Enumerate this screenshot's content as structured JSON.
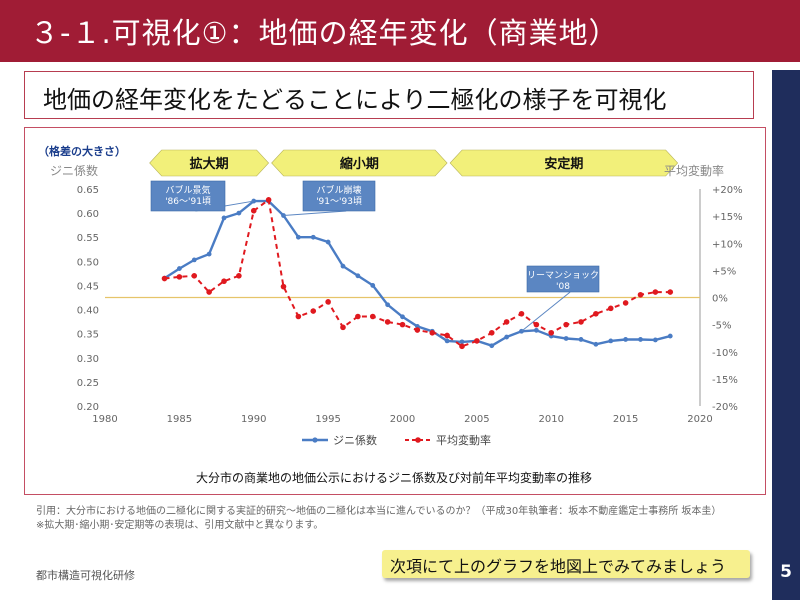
{
  "slide": {
    "title": "３-１.可視化①：地価の経年変化（商業地）",
    "subtitle": "地価の経年変化をたどることにより二極化の様子を可視化",
    "page_number": "5",
    "footer": "都市構造可視化研修",
    "citation_1": "引用：大分市における地価の二極化に関する実証的研究～地価の二極化は本当に進んでいるのか？（平成30年執筆者：坂本不動産鑑定士事務所 坂本圭）",
    "citation_2": "※拡大期･縮小期･安定期等の表現は、引用文献中と異なります。",
    "next_note": "次項にて上のグラフを地図上でみてみましょう",
    "colors": {
      "title_bar": "#a01c35",
      "right_band": "#1f2d5c",
      "gini": "#4a7cc4",
      "rate": "#e0191f",
      "phase_arrow": "#f2f07a",
      "ref_line": "#e6c46a"
    }
  },
  "chart_data": {
    "type": "line",
    "caption": "大分市の商業地の地価公示におけるジニ係数及び対前年平均変動率の推移",
    "disparity_label": "（格差の大きさ）",
    "ylabel_left": "ジニ係数",
    "ylabel_right": "平均変動率",
    "xlim": [
      1980,
      2020
    ],
    "ylim_left": [
      0.2,
      0.65
    ],
    "ylim_right": [
      -20,
      20
    ],
    "x_ticks": [
      "1980",
      "1985",
      "1990",
      "1995",
      "2000",
      "2005",
      "2010",
      "2015",
      "2020"
    ],
    "y_ticks_left": [
      "0.65",
      "0.60",
      "0.55",
      "0.50",
      "0.45",
      "0.40",
      "0.35",
      "0.30",
      "0.25",
      "0.20"
    ],
    "y_ticks_right": [
      "+20%",
      "+15%",
      "+10%",
      "+5%",
      "0%",
      "-5%",
      "-10%",
      "-15%",
      "-20%"
    ],
    "phases": [
      {
        "label": "拡大期",
        "from": 1983.0,
        "to": 1991.0
      },
      {
        "label": "縮小期",
        "from": 1991.2,
        "to": 2003.0
      },
      {
        "label": "安定期",
        "from": 2003.2,
        "to": 2018.5
      }
    ],
    "annotations": [
      {
        "text_1": "バブル景気",
        "text_2": "'86～'91頃"
      },
      {
        "text_1": "バブル崩壊",
        "text_2": "'91～'93頃"
      },
      {
        "text_1": "リーマンショック",
        "text_2": "'08"
      }
    ],
    "series": [
      {
        "name": "ジニ係数",
        "axis": "left",
        "x": [
          1984,
          1985,
          1986,
          1987,
          1988,
          1989,
          1990,
          1991,
          1992,
          1993,
          1994,
          1995,
          1996,
          1997,
          1998,
          1999,
          2000,
          2001,
          2002,
          2003,
          2004,
          2005,
          2006,
          2007,
          2008,
          2009,
          2010,
          2011,
          2012,
          2013,
          2014,
          2015,
          2016,
          2017,
          2018
        ],
        "values": [
          0.465,
          0.485,
          0.503,
          0.515,
          0.59,
          0.6,
          0.625,
          0.625,
          0.595,
          0.55,
          0.55,
          0.54,
          0.49,
          0.47,
          0.45,
          0.41,
          0.385,
          0.365,
          0.355,
          0.335,
          0.333,
          0.335,
          0.325,
          0.343,
          0.355,
          0.357,
          0.345,
          0.34,
          0.338,
          0.328,
          0.335,
          0.338,
          0.338,
          0.337,
          0.345
        ]
      },
      {
        "name": "平均変動率",
        "axis": "right",
        "x": [
          1984,
          1985,
          1986,
          1987,
          1988,
          1989,
          1990,
          1991,
          1992,
          1993,
          1994,
          1995,
          1996,
          1997,
          1998,
          1999,
          2000,
          2001,
          2002,
          2003,
          2004,
          2005,
          2006,
          2007,
          2008,
          2009,
          2010,
          2011,
          2012,
          2013,
          2014,
          2015,
          2016,
          2017,
          2018
        ],
        "values": [
          3.5,
          3.8,
          4.0,
          1.0,
          3.0,
          4.0,
          16.0,
          18.0,
          2.0,
          -3.5,
          -2.5,
          -0.8,
          -5.5,
          -3.5,
          -3.5,
          -4.5,
          -5.0,
          -6.0,
          -6.5,
          -7.0,
          -9.0,
          -8.0,
          -6.5,
          -4.5,
          -3.0,
          -5.0,
          -6.5,
          -5.0,
          -4.5,
          -3.0,
          -2.0,
          -1.0,
          0.5,
          1.0,
          1.0
        ]
      }
    ],
    "reference_line_right": 0
  }
}
